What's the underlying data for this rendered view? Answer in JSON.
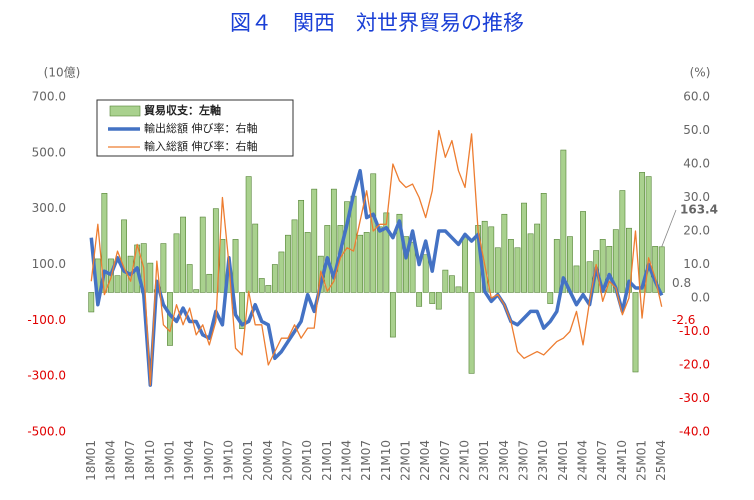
{
  "chart_data": {
    "type": "combo",
    "title": "図４　関西　対世界貿易の推移",
    "y_unit": "(10億)",
    "y2_unit": "(%)",
    "categories": [
      "18M01",
      null,
      null,
      "18M04",
      null,
      null,
      "18M07",
      null,
      null,
      "18M10",
      null,
      null,
      "19M01",
      null,
      null,
      "19M04",
      null,
      null,
      "19M07",
      null,
      null,
      "19M10",
      null,
      null,
      "20M01",
      null,
      null,
      "20M04",
      null,
      null,
      "20M07",
      null,
      null,
      "20M10",
      null,
      null,
      "21M01",
      null,
      null,
      "21M04",
      null,
      null,
      "21M07",
      null,
      null,
      "21M10",
      null,
      null,
      "22M01",
      null,
      null,
      "22M04",
      null,
      null,
      "22M07",
      null,
      null,
      "22M10",
      null,
      null,
      "23M01",
      null,
      null,
      "23M04",
      null,
      null,
      "23M07",
      null,
      null,
      "23M10",
      null,
      null,
      "24M01",
      null,
      null,
      "24M04",
      null,
      null,
      "24M07",
      null,
      null,
      "24M10",
      null,
      null,
      "25M01",
      null,
      null,
      "25M04"
    ],
    "series": [
      {
        "name": "貿易収支：左軸",
        "type": "bar",
        "axis": "y",
        "color": "#a9d18e",
        "edge": "#548235",
        "values": [
          -70,
          120,
          355,
          120,
          60,
          260,
          130,
          170,
          175,
          105,
          10,
          175,
          -190,
          210,
          270,
          100,
          10,
          270,
          65,
          300,
          190,
          80,
          190,
          -130,
          415,
          245,
          50,
          25,
          100,
          145,
          205,
          260,
          330,
          215,
          370,
          130,
          240,
          370,
          240,
          325,
          345,
          205,
          215,
          425,
          235,
          285,
          -160,
          280,
          200,
          180,
          -50,
          135,
          -40,
          -60,
          80,
          60,
          20,
          200,
          -290,
          240,
          255,
          235,
          160,
          280,
          190,
          160,
          320,
          210,
          245,
          355,
          -40,
          190,
          510,
          200,
          95,
          290,
          110,
          150,
          190,
          165,
          225,
          365,
          230,
          -285,
          430,
          415,
          165,
          163.4
        ]
      },
      {
        "name": "輸出総額 伸び率：右軸",
        "type": "line",
        "axis": "y2",
        "color": "#4472c4",
        "width": 3.5,
        "values": [
          18,
          -2,
          8,
          7,
          12,
          8,
          7,
          9,
          1,
          -26,
          5,
          -2,
          -5,
          -7,
          -3,
          -7,
          -7,
          -11,
          -12,
          -4,
          -8,
          12,
          -5,
          -8,
          -7,
          -2,
          -7,
          -8,
          -18,
          -16,
          -13,
          -10,
          -7,
          1,
          -4,
          4,
          12,
          6,
          14,
          22,
          31,
          38,
          24,
          25,
          20,
          21,
          18,
          23,
          12,
          20,
          10,
          17,
          8,
          20,
          20,
          18,
          16,
          19,
          17,
          19,
          2,
          -1,
          1,
          -2,
          -7,
          -8,
          -6,
          -4,
          -4,
          -9,
          -7,
          -4,
          6,
          2,
          -2,
          1,
          -2,
          9,
          2,
          7,
          3,
          -4,
          5,
          3,
          3,
          10,
          5,
          0.8
        ]
      },
      {
        "name": "輸入総額 伸び率：右軸",
        "type": "line",
        "axis": "y2",
        "color": "#ed7d31",
        "width": 1.3,
        "values": [
          5,
          22,
          1,
          6,
          14,
          9,
          5,
          16,
          9,
          -26,
          11,
          -8,
          -10,
          -2,
          -8,
          -3,
          -11,
          -8,
          -14,
          -7,
          30,
          10,
          -15,
          -17,
          2,
          -8,
          -8,
          -20,
          -16,
          -12,
          -12,
          -8,
          -12,
          -9,
          -9,
          8,
          2,
          5,
          12,
          15,
          14,
          23,
          32,
          20,
          22,
          22,
          40,
          35,
          33,
          34,
          30,
          24,
          32,
          50,
          42,
          47,
          38,
          33,
          49,
          20,
          10,
          0,
          1,
          -2,
          -7,
          -16,
          -18,
          -17,
          -16,
          -17,
          -15,
          -13,
          -12,
          -10,
          -4,
          -14,
          -1,
          10,
          -1,
          5,
          3,
          -5,
          0,
          20,
          -6,
          12,
          6,
          -2.6
        ]
      }
    ],
    "ylim": [
      -500,
      700
    ],
    "yticks": [
      {
        "value": 700,
        "label": "700.0"
      },
      {
        "value": 500,
        "label": "500.0"
      },
      {
        "value": 300,
        "label": "300.0"
      },
      {
        "value": 100,
        "label": "100.0"
      },
      {
        "value": -100,
        "label": "-100.0"
      },
      {
        "value": -300,
        "label": "-300.0"
      },
      {
        "value": -500,
        "label": "-500.0"
      }
    ],
    "y2lim": [
      -40,
      60
    ],
    "y2ticks": [
      {
        "value": 60,
        "label": "60.0"
      },
      {
        "value": 50,
        "label": "50.0"
      },
      {
        "value": 40,
        "label": "40.0"
      },
      {
        "value": 30,
        "label": "30.0"
      },
      {
        "value": 20,
        "label": "20.0"
      },
      {
        "value": 10,
        "label": "10.0"
      },
      {
        "value": 0,
        "label": "0.0"
      },
      {
        "value": -10,
        "label": "-10.0"
      },
      {
        "value": -20,
        "label": "-20.0"
      },
      {
        "value": -30,
        "label": "-30.0"
      },
      {
        "value": -40,
        "label": "-40.0"
      }
    ],
    "negative_color": "#e00000",
    "label_last": true,
    "legend": "upper left",
    "grid": false
  }
}
